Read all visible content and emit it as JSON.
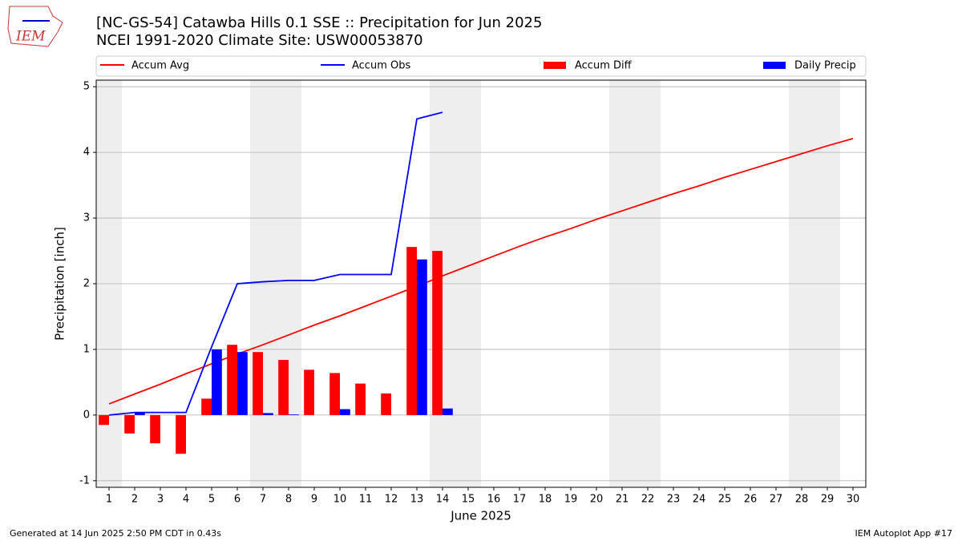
{
  "chart_data": {
    "type": "combo",
    "title": "[NC-GS-54] Catawba Hills 0.1 SSE :: Precipitation for Jun 2025",
    "subtitle": "NCEI 1991-2020 Climate Site: USW00053870",
    "xlabel": "June 2025",
    "ylabel": "Precipitation [inch]",
    "x": [
      1,
      2,
      3,
      4,
      5,
      6,
      7,
      8,
      9,
      10,
      11,
      12,
      13,
      14,
      15,
      16,
      17,
      18,
      19,
      20,
      21,
      22,
      23,
      24,
      25,
      26,
      27,
      28,
      29,
      30
    ],
    "xticks": [
      1,
      2,
      3,
      4,
      5,
      6,
      7,
      8,
      9,
      10,
      11,
      12,
      13,
      14,
      15,
      16,
      17,
      18,
      19,
      20,
      21,
      22,
      23,
      24,
      25,
      26,
      27,
      28,
      29,
      30
    ],
    "xlim": [
      0.5,
      30.5
    ],
    "ylim": [
      -1.1,
      5.1
    ],
    "yticks": [
      -1,
      0,
      1,
      2,
      3,
      4,
      5
    ],
    "grid": true,
    "shaded_spans": [
      [
        0.5,
        1.5
      ],
      [
        6.5,
        8.5
      ],
      [
        13.5,
        15.5
      ],
      [
        20.5,
        22.5
      ],
      [
        27.5,
        29.5
      ]
    ],
    "shade_color": "#eeeeee",
    "series": [
      {
        "name": "Accum Avg",
        "type": "line",
        "color": "#ff0000",
        "values": [
          0.17,
          0.32,
          0.47,
          0.63,
          0.78,
          0.93,
          1.07,
          1.22,
          1.37,
          1.51,
          1.66,
          1.81,
          1.96,
          2.12,
          2.27,
          2.42,
          2.57,
          2.71,
          2.84,
          2.98,
          3.11,
          3.24,
          3.37,
          3.49,
          3.62,
          3.74,
          3.86,
          3.98,
          4.1,
          4.21
        ]
      },
      {
        "name": "Accum Obs",
        "type": "line",
        "color": "#0000ff",
        "values": [
          0.0,
          0.04,
          0.04,
          0.04,
          1.04,
          2.0,
          2.03,
          2.05,
          2.05,
          2.14,
          2.14,
          2.14,
          4.51,
          4.61,
          null,
          null,
          null,
          null,
          null,
          null,
          null,
          null,
          null,
          null,
          null,
          null,
          null,
          null,
          null,
          null
        ]
      },
      {
        "name": "Accum Diff",
        "type": "bar",
        "color": "#ff0000",
        "values": [
          -0.15,
          -0.28,
          -0.43,
          -0.59,
          0.25,
          1.07,
          0.96,
          0.84,
          0.69,
          0.64,
          0.48,
          0.33,
          2.56,
          2.5,
          null,
          null,
          null,
          null,
          null,
          null,
          null,
          null,
          null,
          null,
          null,
          null,
          null,
          null,
          null,
          null
        ]
      },
      {
        "name": "Daily Precip",
        "type": "bar",
        "color": "#0000ff",
        "values": [
          0.0,
          0.04,
          0.0,
          0.0,
          1.0,
          0.96,
          0.03,
          0.01,
          0.0,
          0.09,
          0.0,
          0.0,
          2.37,
          0.1,
          null,
          null,
          null,
          null,
          null,
          null,
          null,
          null,
          null,
          null,
          null,
          null,
          null,
          null,
          null,
          null
        ]
      }
    ]
  },
  "logo_text": "IEM",
  "footer_left": "Generated at 14 Jun 2025 2:50 PM CDT in 0.43s",
  "footer_right": "IEM Autoplot App #17"
}
